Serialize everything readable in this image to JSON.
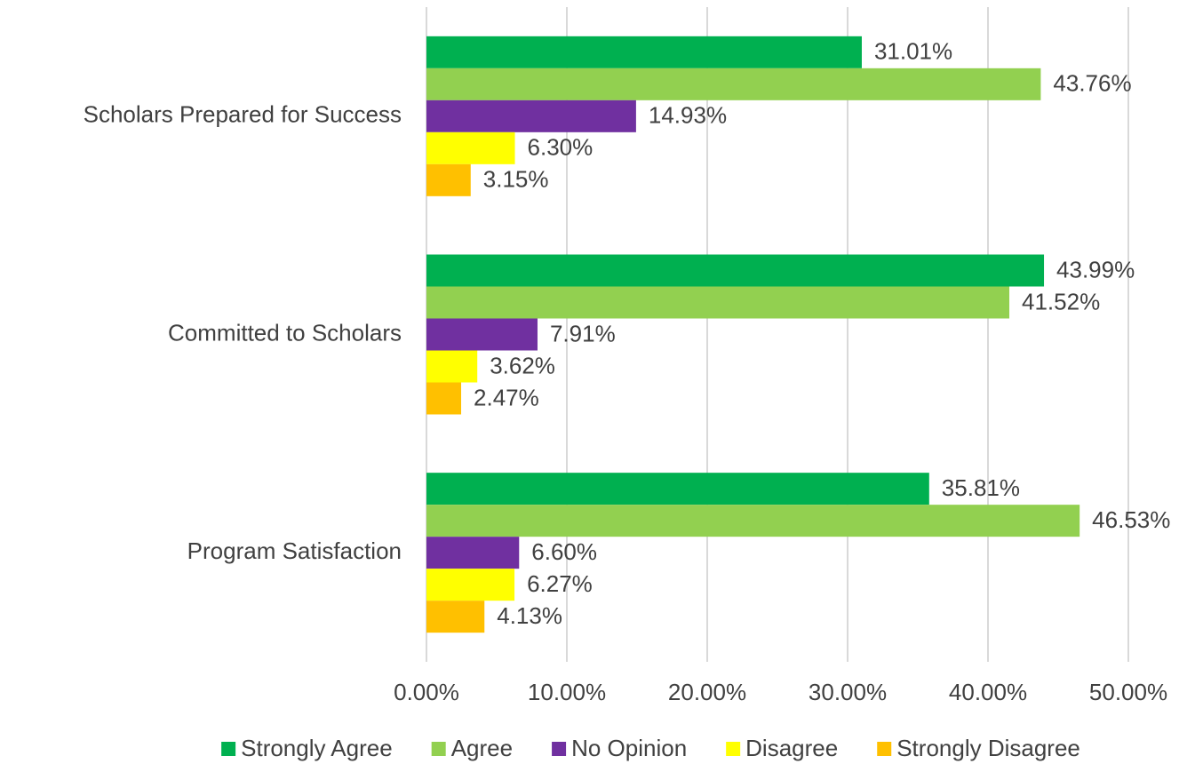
{
  "chart_data": {
    "type": "bar",
    "orientation": "horizontal",
    "categories": [
      "Scholars Prepared for Success",
      "Committed to Scholars",
      "Program Satisfaction"
    ],
    "series": [
      {
        "name": "Strongly Agree",
        "color": "#00b050",
        "values": [
          31.01,
          43.99,
          35.81
        ],
        "value_labels": [
          "31.01%",
          "43.99%",
          "35.81%"
        ]
      },
      {
        "name": "Agree",
        "color": "#92d050",
        "values": [
          43.76,
          41.52,
          46.53
        ],
        "value_labels": [
          "43.76%",
          "41.52%",
          "46.53%"
        ]
      },
      {
        "name": "No Opinion",
        "color": "#7030a0",
        "values": [
          14.93,
          7.91,
          6.6
        ],
        "value_labels": [
          "14.93%",
          "7.91%",
          "6.60%"
        ]
      },
      {
        "name": "Disagree",
        "color": "#ffff00",
        "values": [
          6.3,
          3.62,
          6.27
        ],
        "value_labels": [
          "6.30%",
          "3.62%",
          "6.27%"
        ]
      },
      {
        "name": "Strongly Disagree",
        "color": "#ffc000",
        "values": [
          3.15,
          2.47,
          4.13
        ],
        "value_labels": [
          "3.15%",
          "2.47%",
          "4.13%"
        ]
      }
    ],
    "xlim": [
      0,
      50
    ],
    "xticks": [
      {
        "value": 0,
        "label": "0.00%"
      },
      {
        "value": 10,
        "label": "10.00%"
      },
      {
        "value": 20,
        "label": "20.00%"
      },
      {
        "value": 30,
        "label": "30.00%"
      },
      {
        "value": 40,
        "label": "40.00%"
      },
      {
        "value": 50,
        "label": "50.00%"
      }
    ],
    "grid": true,
    "legend": "bottom"
  }
}
